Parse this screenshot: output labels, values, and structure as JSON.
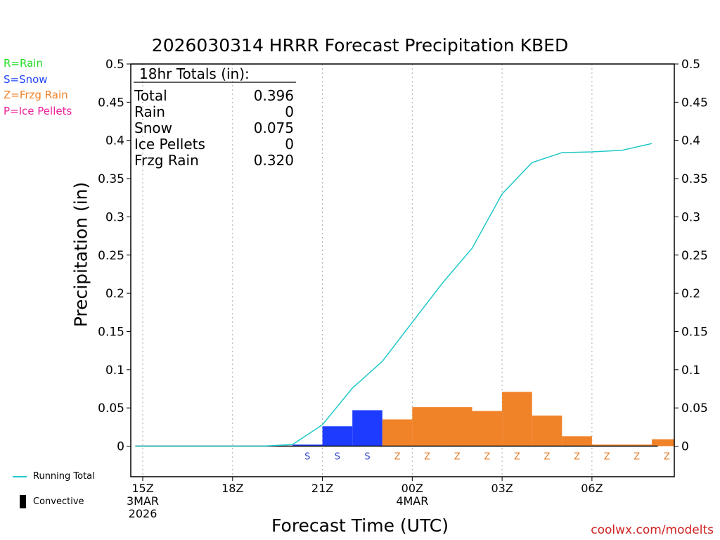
{
  "legend": {
    "rain": {
      "label": "R=Rain",
      "color": "#22dd22"
    },
    "snow": {
      "label": "S=Snow",
      "color": "#2244ff"
    },
    "frzg": {
      "label": "Z=Frzg Rain",
      "color": "#f08228"
    },
    "ice": {
      "label": "P=Ice Pellets",
      "color": "#ee2299"
    }
  },
  "key": {
    "running_total": "Running Total",
    "convective": "Convective",
    "running_total_color": "#20c8c8"
  },
  "watermark": "coolwx.com/modelts",
  "chart_data": {
    "type": "bar",
    "title": "2026030314 HRRR Forecast Precipitation KBED",
    "xlabel": "Forecast Time (UTC)",
    "ylabel": "Precipitation (in)",
    "ylim": [
      -0.04,
      0.5
    ],
    "y_ticks": [
      0,
      0.05,
      0.1,
      0.15,
      0.2,
      0.25,
      0.3,
      0.35,
      0.4,
      0.45,
      0.5
    ],
    "y_tick_labels": [
      "0",
      "0.05",
      "0.1",
      "0.15",
      "0.2",
      "0.25",
      "0.3",
      "0.35",
      "0.4",
      "0.45",
      "0.5"
    ],
    "x_range_hours": [
      14.6,
      32.75
    ],
    "x_ticks": [
      {
        "hour": 15,
        "lines": [
          "15Z",
          "3MAR",
          "2026"
        ]
      },
      {
        "hour": 18,
        "lines": [
          "18Z"
        ]
      },
      {
        "hour": 21,
        "lines": [
          "21Z"
        ]
      },
      {
        "hour": 24,
        "lines": [
          "00Z",
          "4MAR"
        ]
      },
      {
        "hour": 27,
        "lines": [
          "03Z"
        ]
      },
      {
        "hour": 30,
        "lines": [
          "06Z"
        ]
      }
    ],
    "grid": "vertical-dotted",
    "summary": {
      "title": "18hr Totals (in):",
      "rows": [
        {
          "label": "Total",
          "value": "0.396"
        },
        {
          "label": "Rain",
          "value": "0"
        },
        {
          "label": "Snow",
          "value": "0.075"
        },
        {
          "label": "Ice Pellets",
          "value": "0"
        },
        {
          "label": "Frzg Rain",
          "value": "0.320"
        }
      ]
    },
    "series": [
      {
        "name": "Hourly Precipitation",
        "bars": [
          {
            "hour": 15,
            "value": 0,
            "ptype": ""
          },
          {
            "hour": 16,
            "value": 0,
            "ptype": ""
          },
          {
            "hour": 17,
            "value": 0,
            "ptype": ""
          },
          {
            "hour": 18,
            "value": 0,
            "ptype": ""
          },
          {
            "hour": 19,
            "value": 0,
            "ptype": ""
          },
          {
            "hour": 20,
            "value": 0.002,
            "ptype": "S"
          },
          {
            "hour": 21,
            "value": 0.026,
            "ptype": "S"
          },
          {
            "hour": 22,
            "value": 0.047,
            "ptype": "S"
          },
          {
            "hour": 23,
            "value": 0.035,
            "ptype": "Z"
          },
          {
            "hour": 24,
            "value": 0.051,
            "ptype": "Z"
          },
          {
            "hour": 25,
            "value": 0.051,
            "ptype": "Z"
          },
          {
            "hour": 26,
            "value": 0.046,
            "ptype": "Z"
          },
          {
            "hour": 27,
            "value": 0.071,
            "ptype": "Z"
          },
          {
            "hour": 28,
            "value": 0.04,
            "ptype": "Z"
          },
          {
            "hour": 29,
            "value": 0.013,
            "ptype": "Z"
          },
          {
            "hour": 30,
            "value": 0.002,
            "ptype": "Z"
          },
          {
            "hour": 31,
            "value": 0.002,
            "ptype": "Z"
          },
          {
            "hour": 32,
            "value": 0.009,
            "ptype": "Z"
          }
        ]
      },
      {
        "name": "Running Total",
        "x": [
          14.75,
          15,
          16,
          17,
          18,
          19,
          20,
          21,
          22,
          23,
          24,
          25,
          26,
          27,
          28,
          29,
          30,
          31,
          32
        ],
        "values": [
          0,
          0,
          0,
          0,
          0,
          0,
          0.002,
          0.028,
          0.076,
          0.111,
          0.162,
          0.213,
          0.259,
          0.33,
          0.371,
          0.384,
          0.385,
          0.387,
          0.396
        ]
      }
    ]
  }
}
